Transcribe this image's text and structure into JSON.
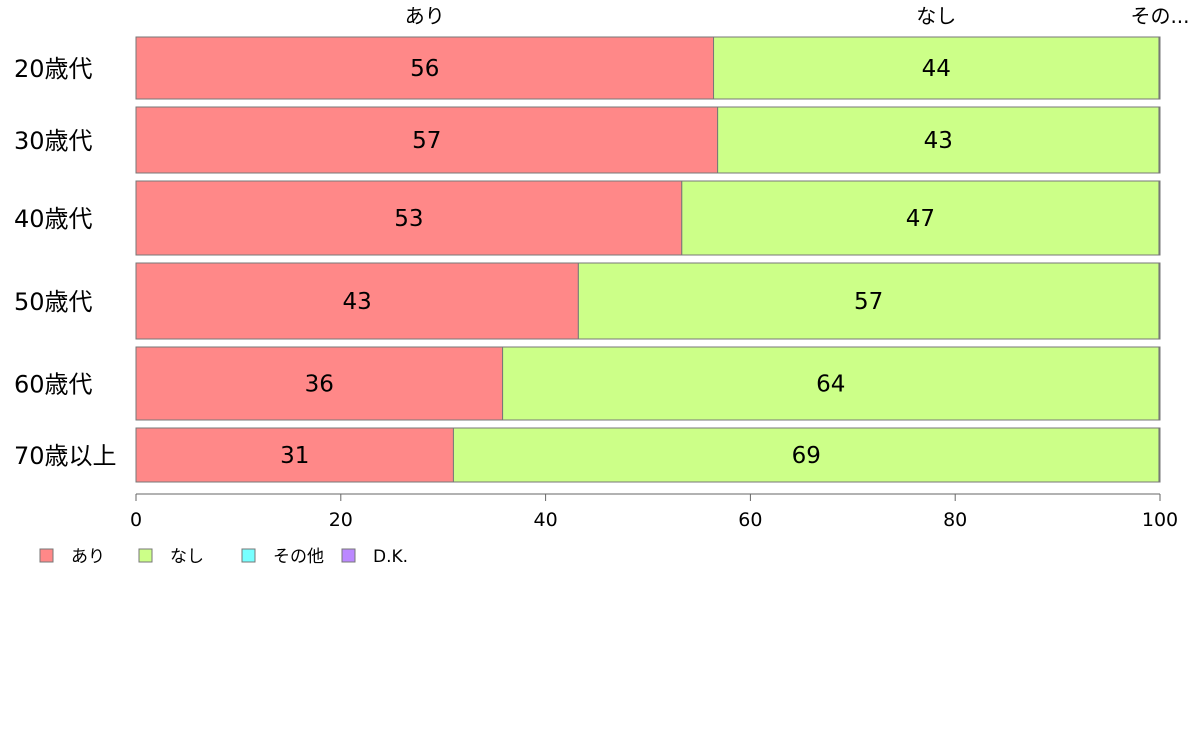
{
  "chart_data": {
    "type": "bar",
    "orientation": "horizontal",
    "stacked": true,
    "categories": [
      "20歳代",
      "30歳代",
      "40歳代",
      "50歳代",
      "60歳代",
      "70歳以上"
    ],
    "series": [
      {
        "name": "あり",
        "values": [
          56.4,
          56.8,
          53.3,
          43.2,
          35.8,
          31.0
        ],
        "labels": [
          "56",
          "57",
          "53",
          "43",
          "36",
          "31"
        ],
        "color": "#ff8888"
      },
      {
        "name": "なし",
        "values": [
          43.5,
          43.1,
          46.6,
          56.7,
          64.1,
          68.9
        ],
        "labels": [
          "44",
          "43",
          "47",
          "57",
          "64",
          "69"
        ],
        "color": "#ccff88"
      },
      {
        "name": "その他",
        "values": [
          0.05,
          0.05,
          0.05,
          0.05,
          0.05,
          0.05
        ],
        "labels": [
          "",
          "",
          "",
          "",
          "",
          ""
        ],
        "color": "#77ffff"
      },
      {
        "name": "D.K.",
        "values": [
          0.05,
          0.05,
          0.05,
          0.05,
          0.05,
          0.05
        ],
        "labels": [
          "",
          "",
          "",
          "",
          "",
          ""
        ],
        "color": "#bb88ff"
      }
    ],
    "top_labels": [
      "あり",
      "なし",
      "その..."
    ],
    "xlim": [
      0,
      100
    ],
    "xticks": [
      0,
      20,
      40,
      60,
      80,
      100
    ],
    "grid": false,
    "legend": {
      "position": "bottom-left",
      "items": [
        "あり",
        "なし",
        "その他",
        "D.K."
      ]
    }
  }
}
